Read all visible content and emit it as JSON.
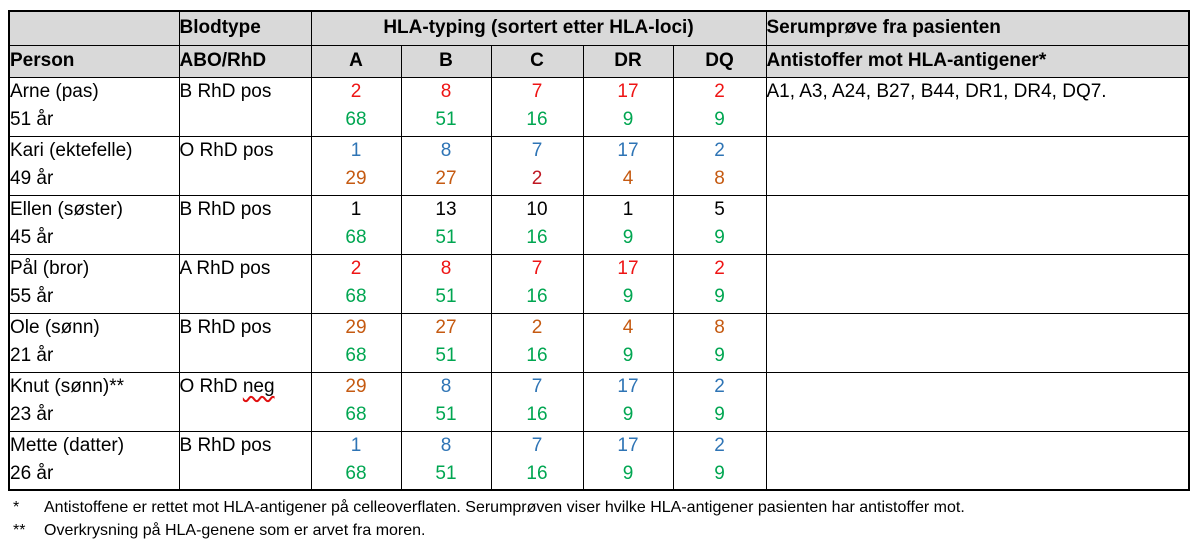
{
  "palette": {
    "red": "#ee1414",
    "green": "#00a651",
    "blue": "#2e74b5",
    "orange": "#c55a11",
    "darkred": "#bf1722",
    "black": "#000000",
    "header_bg": "#d9d9d9",
    "squiggle_red": "#e01010",
    "border": "#000000"
  },
  "table": {
    "header": {
      "person": "Person",
      "blodtype": "Blodtype",
      "abo": "ABO/RhD",
      "hla_group": "HLA-typing (sortert etter HLA-loci)",
      "loci": [
        "A",
        "B",
        "C",
        "DR",
        "DQ"
      ],
      "serum": "Serumprøve fra pasienten",
      "antibodies": "Antistoffer mot HLA-antigener*"
    },
    "rows": [
      {
        "name": "Arne (pas)",
        "age": "51 år",
        "blood": "B RhD pos",
        "blood_mark": "",
        "hla": [
          {
            "top": {
              "v": "2",
              "c": "red"
            },
            "bottom": {
              "v": "68",
              "c": "green"
            }
          },
          {
            "top": {
              "v": "8",
              "c": "red"
            },
            "bottom": {
              "v": "51",
              "c": "green"
            }
          },
          {
            "top": {
              "v": "7",
              "c": "red"
            },
            "bottom": {
              "v": "16",
              "c": "green"
            }
          },
          {
            "top": {
              "v": "17",
              "c": "red"
            },
            "bottom": {
              "v": "9",
              "c": "green"
            }
          },
          {
            "top": {
              "v": "2",
              "c": "red"
            },
            "bottom": {
              "v": "9",
              "c": "green"
            }
          }
        ],
        "antibodies": "A1, A3, A24, B27, B44, DR1, DR4, DQ7."
      },
      {
        "name": "Kari (ektefelle)",
        "age": "49 år",
        "blood": "O RhD pos",
        "blood_mark": "",
        "hla": [
          {
            "top": {
              "v": "1",
              "c": "blue"
            },
            "bottom": {
              "v": "29",
              "c": "orange"
            }
          },
          {
            "top": {
              "v": "8",
              "c": "blue"
            },
            "bottom": {
              "v": "27",
              "c": "orange"
            }
          },
          {
            "top": {
              "v": "7",
              "c": "blue"
            },
            "bottom": {
              "v": "2",
              "c": "darkred"
            }
          },
          {
            "top": {
              "v": "17",
              "c": "blue"
            },
            "bottom": {
              "v": "4",
              "c": "orange"
            }
          },
          {
            "top": {
              "v": "2",
              "c": "blue"
            },
            "bottom": {
              "v": "8",
              "c": "orange"
            }
          }
        ],
        "antibodies": ""
      },
      {
        "name": "Ellen (søster)",
        "age": "45 år",
        "blood": "B RhD pos",
        "blood_mark": "",
        "hla": [
          {
            "top": {
              "v": "1",
              "c": "black"
            },
            "bottom": {
              "v": "68",
              "c": "green"
            }
          },
          {
            "top": {
              "v": "13",
              "c": "black"
            },
            "bottom": {
              "v": "51",
              "c": "green"
            }
          },
          {
            "top": {
              "v": "10",
              "c": "black"
            },
            "bottom": {
              "v": "16",
              "c": "green"
            }
          },
          {
            "top": {
              "v": "1",
              "c": "black"
            },
            "bottom": {
              "v": "9",
              "c": "green"
            }
          },
          {
            "top": {
              "v": "5",
              "c": "black"
            },
            "bottom": {
              "v": "9",
              "c": "green"
            }
          }
        ],
        "antibodies": ""
      },
      {
        "name": "Pål (bror)",
        "age": "55 år",
        "blood": "A RhD pos",
        "blood_mark": "",
        "hla": [
          {
            "top": {
              "v": "2",
              "c": "red"
            },
            "bottom": {
              "v": "68",
              "c": "green"
            }
          },
          {
            "top": {
              "v": "8",
              "c": "red"
            },
            "bottom": {
              "v": "51",
              "c": "green"
            }
          },
          {
            "top": {
              "v": "7",
              "c": "red"
            },
            "bottom": {
              "v": "16",
              "c": "green"
            }
          },
          {
            "top": {
              "v": "17",
              "c": "red"
            },
            "bottom": {
              "v": "9",
              "c": "green"
            }
          },
          {
            "top": {
              "v": "2",
              "c": "red"
            },
            "bottom": {
              "v": "9",
              "c": "green"
            }
          }
        ],
        "antibodies": ""
      },
      {
        "name": "Ole (sønn)",
        "age": "21 år",
        "blood": "B RhD pos",
        "blood_mark": "",
        "hla": [
          {
            "top": {
              "v": "29",
              "c": "orange"
            },
            "bottom": {
              "v": "68",
              "c": "green"
            }
          },
          {
            "top": {
              "v": "27",
              "c": "orange"
            },
            "bottom": {
              "v": "51",
              "c": "green"
            }
          },
          {
            "top": {
              "v": "2",
              "c": "orange"
            },
            "bottom": {
              "v": "16",
              "c": "green"
            }
          },
          {
            "top": {
              "v": "4",
              "c": "orange"
            },
            "bottom": {
              "v": "9",
              "c": "green"
            }
          },
          {
            "top": {
              "v": "8",
              "c": "orange"
            },
            "bottom": {
              "v": "9",
              "c": "green"
            }
          }
        ],
        "antibodies": ""
      },
      {
        "name": "Knut (sønn)**",
        "age": "23 år",
        "blood": "O RhD",
        "blood_mark": "neg",
        "hla": [
          {
            "top": {
              "v": "29",
              "c": "orange"
            },
            "bottom": {
              "v": "68",
              "c": "green"
            }
          },
          {
            "top": {
              "v": "8",
              "c": "blue"
            },
            "bottom": {
              "v": "51",
              "c": "green"
            }
          },
          {
            "top": {
              "v": "7",
              "c": "blue"
            },
            "bottom": {
              "v": "16",
              "c": "green"
            }
          },
          {
            "top": {
              "v": "17",
              "c": "blue"
            },
            "bottom": {
              "v": "9",
              "c": "green"
            }
          },
          {
            "top": {
              "v": "2",
              "c": "blue"
            },
            "bottom": {
              "v": "9",
              "c": "green"
            }
          }
        ],
        "antibodies": ""
      },
      {
        "name": "Mette (datter)",
        "age": "26 år",
        "blood": "B RhD pos",
        "blood_mark": "",
        "hla": [
          {
            "top": {
              "v": "1",
              "c": "blue"
            },
            "bottom": {
              "v": "68",
              "c": "green"
            }
          },
          {
            "top": {
              "v": "8",
              "c": "blue"
            },
            "bottom": {
              "v": "51",
              "c": "green"
            }
          },
          {
            "top": {
              "v": "7",
              "c": "blue"
            },
            "bottom": {
              "v": "16",
              "c": "green"
            }
          },
          {
            "top": {
              "v": "17",
              "c": "blue"
            },
            "bottom": {
              "v": "9",
              "c": "green"
            }
          },
          {
            "top": {
              "v": "2",
              "c": "blue"
            },
            "bottom": {
              "v": "9",
              "c": "green"
            }
          }
        ],
        "antibodies": ""
      }
    ]
  },
  "footnotes": [
    {
      "marker": "*",
      "text": "Antistoffene er rettet mot HLA-antigener på celleoverflaten. Serumprøven viser hvilke HLA-antigener pasienten har antistoffer mot."
    },
    {
      "marker": "**",
      "text": "Overkrysning på HLA-genene som er arvet fra moren."
    }
  ]
}
